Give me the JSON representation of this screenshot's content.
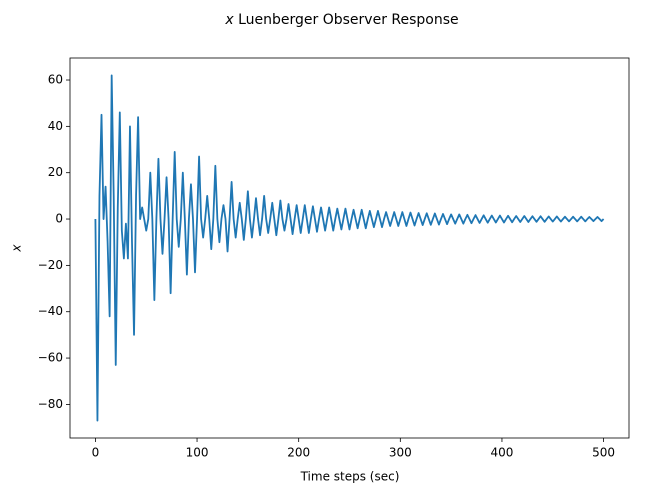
{
  "chart_data": {
    "type": "line",
    "title": {
      "symbol": "x",
      "text": "Luenberger Observer Response"
    },
    "xlabel": "Time steps (sec)",
    "ylabel": "x",
    "color": "#1f77b4",
    "xlim": [
      -25,
      525
    ],
    "ylim": [
      -94.5,
      69.5
    ],
    "xticks": [
      0,
      100,
      200,
      300,
      400,
      500
    ],
    "yticks": [
      {
        "value": -80,
        "label": "−80"
      },
      {
        "value": -60,
        "label": "−60"
      },
      {
        "value": -40,
        "label": "−40"
      },
      {
        "value": -20,
        "label": "−20"
      },
      0,
      20,
      40,
      60
    ],
    "x": [
      0,
      2,
      4,
      6,
      8,
      10,
      12,
      14,
      16,
      18,
      20,
      22,
      24,
      26,
      28,
      30,
      32,
      34,
      36,
      38,
      40,
      42,
      44,
      46,
      48,
      50,
      52,
      54,
      56,
      58,
      60,
      62,
      64,
      66,
      68,
      70,
      72,
      74,
      76,
      78,
      80,
      82,
      84,
      86,
      88,
      90,
      92,
      94,
      96,
      98,
      100,
      102,
      104,
      106,
      108,
      110,
      112,
      114,
      116,
      118,
      120,
      122,
      124,
      126,
      128,
      130,
      132,
      134,
      136,
      138,
      140,
      142,
      144,
      146,
      148,
      150,
      152,
      154,
      156,
      158,
      160,
      162,
      164,
      166,
      168,
      170,
      172,
      174,
      176,
      178,
      180,
      182,
      184,
      186,
      188,
      190,
      192,
      194,
      196,
      198,
      200,
      202,
      204,
      206,
      208,
      210,
      212,
      214,
      216,
      218,
      220,
      222,
      224,
      226,
      228,
      230,
      232,
      234,
      236,
      238,
      240,
      242,
      244,
      246,
      248,
      250,
      252,
      254,
      256,
      258,
      260,
      262,
      264,
      266,
      268,
      270,
      272,
      274,
      276,
      278,
      280,
      282,
      284,
      286,
      288,
      290,
      292,
      294,
      296,
      298,
      300,
      302,
      304,
      306,
      308,
      310,
      312,
      314,
      316,
      318,
      320,
      322,
      324,
      326,
      328,
      330,
      332,
      334,
      336,
      338,
      340,
      342,
      344,
      346,
      348,
      350,
      352,
      354,
      356,
      358,
      360,
      362,
      364,
      366,
      368,
      370,
      372,
      374,
      376,
      378,
      380,
      382,
      384,
      386,
      388,
      390,
      392,
      394,
      396,
      398,
      400,
      402,
      404,
      406,
      408,
      410,
      412,
      414,
      416,
      418,
      420,
      422,
      424,
      426,
      428,
      430,
      432,
      434,
      436,
      438,
      440,
      442,
      444,
      446,
      448,
      450,
      452,
      454,
      456,
      458,
      460,
      462,
      464,
      466,
      468,
      470,
      472,
      474,
      476,
      478,
      480,
      482,
      484,
      486,
      488,
      490,
      492,
      494,
      496,
      498,
      500
    ],
    "values": [
      0,
      -87,
      10,
      45,
      0,
      14,
      -10,
      -42,
      62,
      10,
      -63,
      5,
      46,
      -5,
      -17,
      -2,
      -17,
      40,
      -10,
      -50,
      10,
      44,
      0,
      5,
      0,
      -5,
      0,
      20,
      0,
      -35,
      0,
      26,
      0,
      -15,
      0,
      18,
      0,
      -32,
      0,
      29,
      0,
      -12,
      0,
      20,
      0,
      -24,
      0,
      15,
      0,
      -23,
      0,
      27,
      0,
      -8,
      0,
      10,
      0,
      -13,
      0,
      23,
      0,
      -10,
      0,
      6,
      0,
      -14,
      0,
      16,
      0,
      -8,
      0,
      7,
      0,
      -9,
      0,
      12,
      0,
      -8,
      0,
      9,
      0,
      -7,
      0,
      10,
      0,
      -6,
      0,
      7,
      0,
      -7,
      0,
      8,
      0,
      -5,
      0,
      6.5,
      0,
      -6.5,
      0,
      6,
      0,
      -6,
      0,
      6,
      0,
      -6,
      0,
      5.5,
      0,
      -5.5,
      0,
      5,
      0,
      -5,
      0,
      5,
      0,
      -5,
      0,
      4.5,
      0,
      -4.5,
      0,
      4.5,
      0,
      -4.5,
      0,
      4,
      0,
      -4,
      0,
      4,
      0,
      -4,
      0,
      3.5,
      0,
      -3.5,
      0,
      3.5,
      0,
      -3.5,
      0,
      3,
      0,
      -3,
      0,
      3,
      0,
      -3,
      0,
      3,
      0,
      -3,
      0,
      2.8,
      0,
      -2.8,
      0,
      2.6,
      0,
      -2.6,
      0,
      2.5,
      0,
      -2.5,
      0,
      2.4,
      0,
      -2.4,
      0,
      2.2,
      0,
      -2.2,
      0,
      2,
      0,
      -2,
      0,
      2,
      0,
      -2,
      0,
      1.8,
      0,
      -1.8,
      0,
      1.7,
      0,
      -1.7,
      0,
      1.6,
      0,
      -1.6,
      0,
      1.5,
      0,
      -1.5,
      0,
      1.5,
      0,
      -1.5,
      0,
      1.4,
      0,
      -1.4,
      0,
      1.3,
      0,
      -1.3,
      0,
      1.3,
      0,
      -1.3,
      0,
      1.2,
      0,
      -1.2,
      0,
      1.2,
      0,
      -1.2,
      0,
      1.1,
      0,
      -1.1,
      0,
      1.1,
      0,
      -1.1,
      0,
      1,
      0,
      -1,
      0,
      1,
      0,
      -1,
      0,
      1,
      0,
      -1,
      0,
      0.9,
      0,
      -0.9,
      0,
      0.9,
      0,
      -0.9,
      0
    ]
  }
}
